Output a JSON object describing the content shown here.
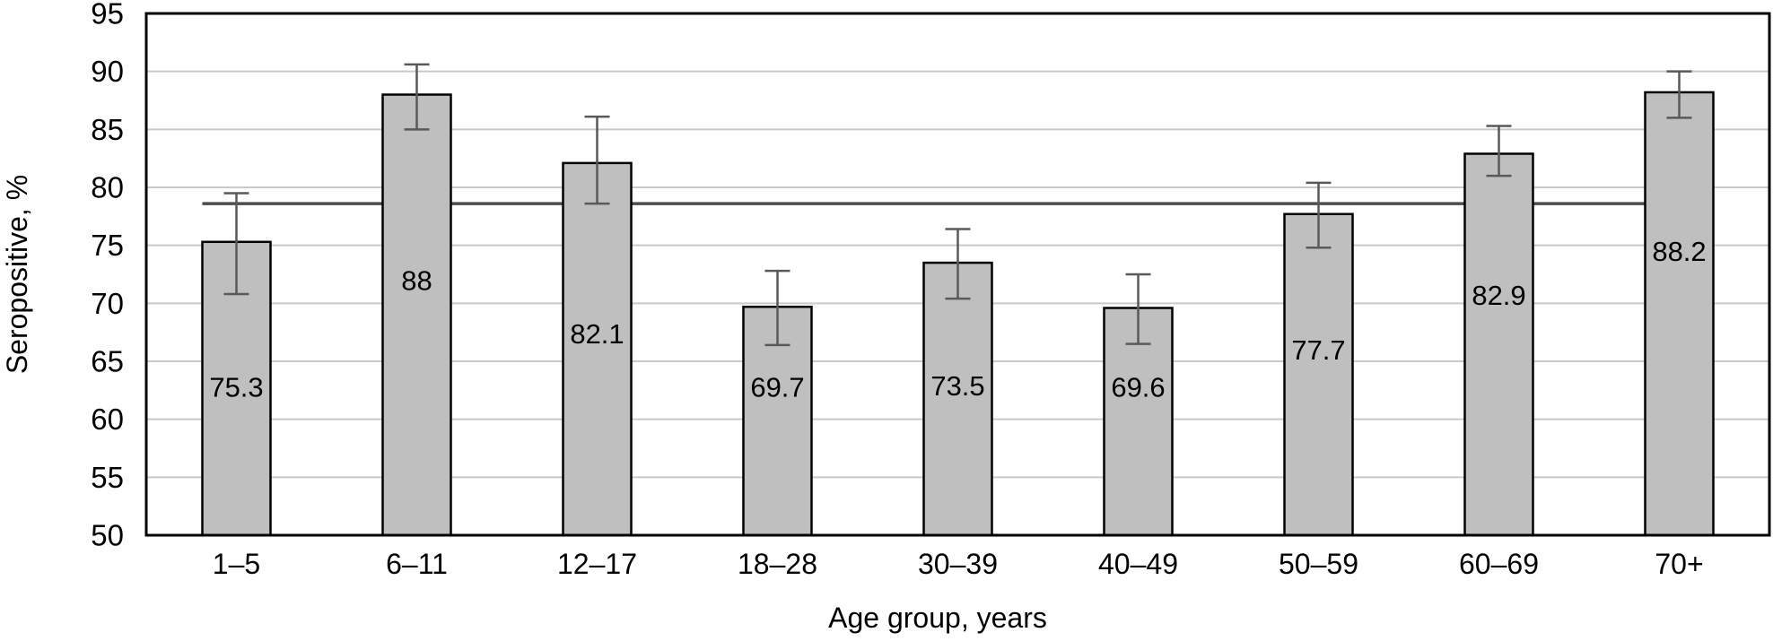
{
  "chart_data": {
    "type": "bar",
    "title": "",
    "xlabel": "Age group, years",
    "ylabel": "Seropositive, %",
    "categories": [
      "1–5",
      "6–11",
      "12–17",
      "18–28",
      "30–39",
      "40–49",
      "50–59",
      "60–69",
      "70+"
    ],
    "values": [
      75.3,
      88,
      82.1,
      69.7,
      73.5,
      69.6,
      77.7,
      82.9,
      88.2
    ],
    "value_labels": [
      "75.3",
      "88",
      "82.1",
      "69.7",
      "73.5",
      "69.6",
      "77.7",
      "82.9",
      "88.2"
    ],
    "error_low": [
      70.8,
      85.0,
      78.6,
      66.4,
      70.4,
      66.5,
      74.8,
      81.0,
      86.0
    ],
    "error_high": [
      79.5,
      90.6,
      86.1,
      72.8,
      76.4,
      72.5,
      80.4,
      85.3,
      90.0
    ],
    "bar_label_y": [
      62.8,
      72.0,
      67.4,
      62.8,
      62.9,
      62.8,
      66.0,
      70.7,
      74.5
    ],
    "reference_line": {
      "value": 78.6,
      "spans": "from left edge of first bar to left edge of last bar",
      "behind_bars": true
    },
    "ylim": [
      50,
      95
    ],
    "ytick_step": 5,
    "ytick_labels": [
      "50",
      "55",
      "60",
      "65",
      "70",
      "75",
      "80",
      "85",
      "90",
      "95"
    ],
    "grid": true,
    "legend_position": "none",
    "colors": {
      "bar_fill": "#bfbfbf",
      "bar_border": "#000000",
      "gridline": "#c9c9c9",
      "plot_border": "#000000",
      "error_bar": "#595959",
      "reference_line": "#4d4d4d",
      "text": "#000000",
      "background": "#ffffff"
    }
  }
}
